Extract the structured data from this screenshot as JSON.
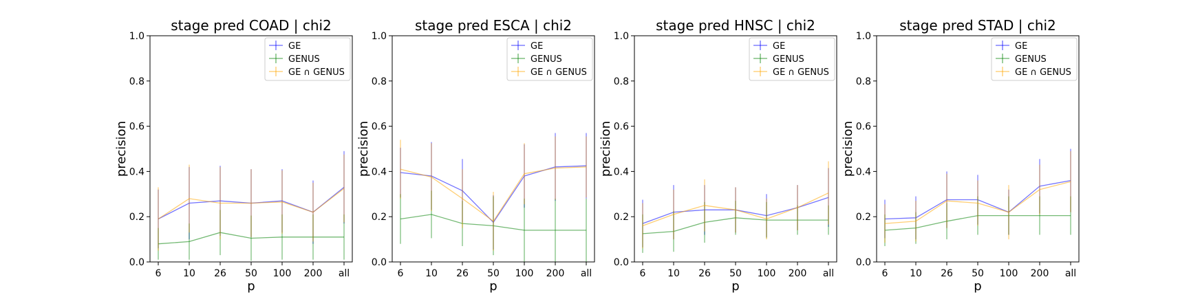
{
  "colors": {
    "GE": "#0000ff",
    "GENUS": "#008000",
    "GE ∩ GENUS": "#ffa500"
  },
  "chart_data": [
    {
      "type": "line",
      "title": "stage pred COAD | chi2",
      "xlabel": "p",
      "ylabel": "precision",
      "ylim": [
        0,
        1
      ],
      "yticks": [
        "0.0",
        "0.2",
        "0.4",
        "0.6",
        "0.8",
        "1.0"
      ],
      "categories": [
        "6",
        "10",
        "26",
        "50",
        "100",
        "200",
        "all"
      ],
      "legend": "top-right",
      "grid": false,
      "series": [
        {
          "name": "GE",
          "values": [
            0.19,
            0.26,
            0.27,
            0.26,
            0.27,
            0.22,
            0.33
          ],
          "err": [
            0.13,
            0.16,
            0.155,
            0.15,
            0.14,
            0.14,
            0.16
          ]
        },
        {
          "name": "GENUS",
          "values": [
            0.08,
            0.09,
            0.13,
            0.105,
            0.11,
            0.11,
            0.11
          ],
          "err": [
            0.07,
            0.08,
            0.1,
            0.1,
            0.1,
            0.1,
            0.1
          ]
        },
        {
          "name": "GE ∩ GENUS",
          "values": [
            0.19,
            0.28,
            0.26,
            0.26,
            0.265,
            0.22,
            0.325
          ],
          "err": [
            0.14,
            0.15,
            0.16,
            0.15,
            0.14,
            0.13,
            0.15
          ]
        }
      ]
    },
    {
      "type": "line",
      "title": "stage pred ESCA | chi2",
      "xlabel": "p",
      "ylabel": "precision",
      "ylim": [
        0,
        1
      ],
      "yticks": [
        "0.0",
        "0.2",
        "0.4",
        "0.6",
        "0.8",
        "1.0"
      ],
      "categories": [
        "6",
        "10",
        "26",
        "50",
        "100",
        "200",
        "all"
      ],
      "legend": "top-right",
      "grid": false,
      "series": [
        {
          "name": "GE",
          "values": [
            0.395,
            0.38,
            0.315,
            0.175,
            0.38,
            0.42,
            0.425
          ],
          "err": [
            0.11,
            0.15,
            0.14,
            0.12,
            0.14,
            0.15,
            0.145
          ]
        },
        {
          "name": "GENUS",
          "values": [
            0.19,
            0.21,
            0.17,
            0.16,
            0.14,
            0.14,
            0.14
          ],
          "err": [
            0.11,
            0.105,
            0.1,
            0.13,
            0.14,
            0.14,
            0.14
          ]
        },
        {
          "name": "GE ∩ GENUS",
          "values": [
            0.41,
            0.375,
            0.28,
            0.18,
            0.39,
            0.415,
            0.42
          ],
          "err": [
            0.13,
            0.15,
            0.13,
            0.13,
            0.135,
            0.14,
            0.135
          ]
        }
      ]
    },
    {
      "type": "line",
      "title": "stage pred HNSC | chi2",
      "xlabel": "p",
      "ylabel": "precision",
      "ylim": [
        0,
        1
      ],
      "yticks": [
        "0.0",
        "0.2",
        "0.4",
        "0.6",
        "0.8",
        "1.0"
      ],
      "categories": [
        "6",
        "10",
        "26",
        "50",
        "100",
        "200",
        "all"
      ],
      "legend": "top-right",
      "grid": false,
      "series": [
        {
          "name": "GE",
          "values": [
            0.17,
            0.22,
            0.23,
            0.23,
            0.205,
            0.24,
            0.285
          ],
          "err": [
            0.105,
            0.12,
            0.11,
            0.1,
            0.095,
            0.1,
            0.13
          ]
        },
        {
          "name": "GENUS",
          "values": [
            0.125,
            0.135,
            0.175,
            0.195,
            0.185,
            0.185,
            0.185
          ],
          "err": [
            0.085,
            0.09,
            0.09,
            0.075,
            0.08,
            0.065,
            0.065
          ]
        },
        {
          "name": "GE ∩ GENUS",
          "values": [
            0.16,
            0.21,
            0.25,
            0.23,
            0.19,
            0.24,
            0.305
          ],
          "err": [
            0.1,
            0.11,
            0.115,
            0.1,
            0.09,
            0.1,
            0.14
          ]
        }
      ]
    },
    {
      "type": "line",
      "title": "stage pred STAD | chi2",
      "xlabel": "p",
      "ylabel": "precision",
      "ylim": [
        0,
        1
      ],
      "yticks": [
        "0.0",
        "0.2",
        "0.4",
        "0.6",
        "0.8",
        "1.0"
      ],
      "categories": [
        "6",
        "10",
        "26",
        "50",
        "100",
        "200",
        "all"
      ],
      "legend": "top-right",
      "grid": false,
      "series": [
        {
          "name": "GE",
          "values": [
            0.19,
            0.195,
            0.275,
            0.275,
            0.22,
            0.335,
            0.36
          ],
          "err": [
            0.085,
            0.095,
            0.125,
            0.11,
            0.1,
            0.12,
            0.14
          ]
        },
        {
          "name": "GENUS",
          "values": [
            0.14,
            0.15,
            0.18,
            0.205,
            0.205,
            0.205,
            0.205
          ],
          "err": [
            0.07,
            0.07,
            0.08,
            0.085,
            0.085,
            0.085,
            0.085
          ]
        },
        {
          "name": "GE ∩ GENUS",
          "values": [
            0.17,
            0.18,
            0.27,
            0.26,
            0.22,
            0.32,
            0.355
          ],
          "err": [
            0.085,
            0.09,
            0.12,
            0.1,
            0.12,
            0.11,
            0.135
          ]
        }
      ]
    }
  ]
}
